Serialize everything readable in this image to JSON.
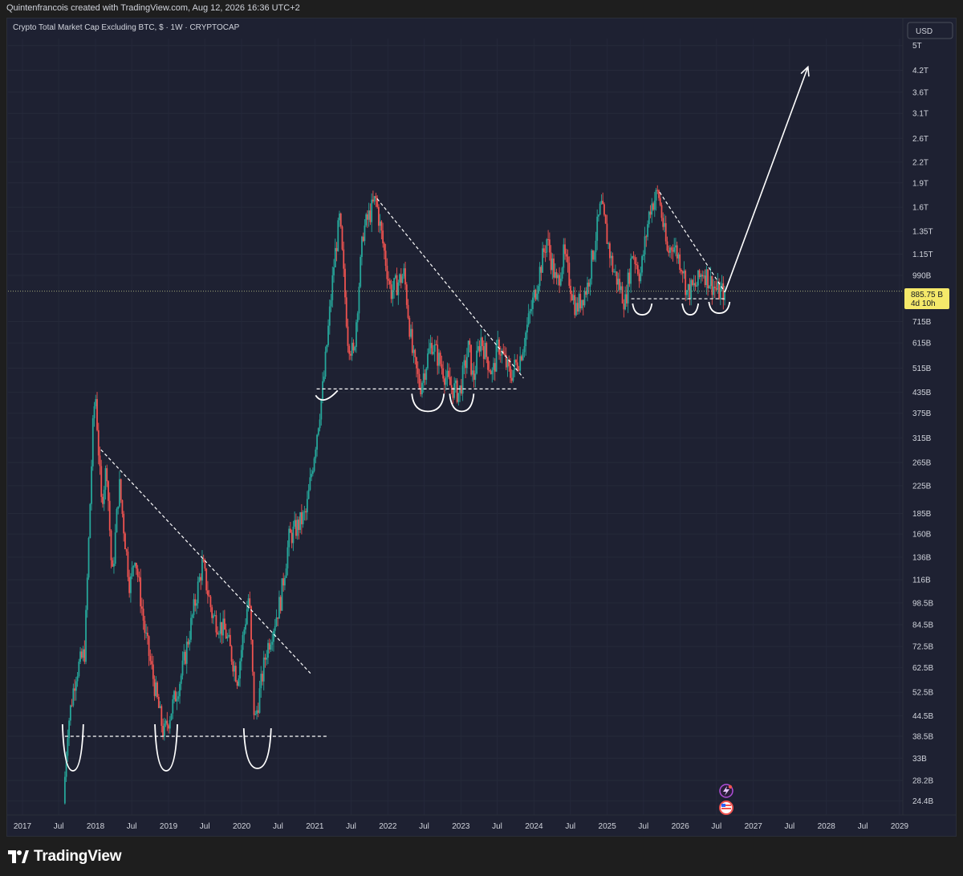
{
  "header": {
    "credit": "Quintenfrancois created with TradingView.com, Aug 12, 2026 16:36 UTC+2"
  },
  "chart_title": "Crypto Total Market Cap Excluding BTC, $ · 1W · CRYPTOCAP",
  "currency_button": "USD",
  "price_tag": {
    "value": "885.75 B",
    "countdown": "4d 10h"
  },
  "footer": {
    "brand": "TradingView"
  },
  "colors": {
    "background": "#1e2132",
    "up": "#26a69a",
    "down": "#ef5350",
    "annotation": "#ffffff",
    "price_line": "#a0a67a",
    "price_tag_bg": "#f5e96a"
  },
  "icons": [
    "tradingview-logo-icon",
    "lightning-icon",
    "us-flag-icon"
  ],
  "chart_data": {
    "type": "candlestick",
    "title": "Crypto Total Market Cap Excluding BTC, $ · 1W · CRYPTOCAP",
    "y_scale": "log",
    "y_ticks": [
      "5T",
      "4.2T",
      "3.6T",
      "3.1T",
      "2.6T",
      "2.2T",
      "1.9T",
      "1.6T",
      "1.35T",
      "1.15T",
      "990B",
      "715B",
      "615B",
      "515B",
      "435B",
      "375B",
      "315B",
      "265B",
      "225B",
      "185B",
      "160B",
      "136B",
      "116B",
      "98.5B",
      "84.5B",
      "72.5B",
      "62.5B",
      "52.5B",
      "44.5B",
      "38.5B",
      "33B",
      "28.2B",
      "24.4B"
    ],
    "x_ticks": [
      "2017",
      "Jul",
      "2018",
      "Jul",
      "2019",
      "Jul",
      "2020",
      "Jul",
      "2021",
      "Jul",
      "2022",
      "Jul",
      "2023",
      "Jul",
      "2024",
      "Jul",
      "2025",
      "Jul",
      "2026",
      "Jul",
      "2027",
      "Jul",
      "2028",
      "Jul",
      "2029"
    ],
    "last_price": "885.75 B",
    "price_path": [
      [
        "2017-08-01",
        24
      ],
      [
        "2017-08-20",
        40
      ],
      [
        "2017-10-01",
        60
      ],
      [
        "2017-11-15",
        70
      ],
      [
        "2017-12-25",
        330
      ],
      [
        "2018-01-07",
        440
      ],
      [
        "2018-02-06",
        200
      ],
      [
        "2018-03-05",
        260
      ],
      [
        "2018-04-01",
        115
      ],
      [
        "2018-05-06",
        230
      ],
      [
        "2018-06-29",
        110
      ],
      [
        "2018-07-24",
        140
      ],
      [
        "2018-09-12",
        80
      ],
      [
        "2018-11-25",
        45
      ],
      [
        "2018-12-15",
        39
      ],
      [
        "2019-01-20",
        46
      ],
      [
        "2019-03-15",
        60
      ],
      [
        "2019-06-26",
        130
      ],
      [
        "2019-08-15",
        90
      ],
      [
        "2019-10-20",
        80
      ],
      [
        "2019-12-18",
        58
      ],
      [
        "2020-02-14",
        105
      ],
      [
        "2020-03-13",
        42
      ],
      [
        "2020-05-10",
        70
      ],
      [
        "2020-07-20",
        100
      ],
      [
        "2020-09-01",
        155
      ],
      [
        "2020-11-25",
        185
      ],
      [
        "2021-01-10",
        300
      ],
      [
        "2021-02-21",
        470
      ],
      [
        "2021-04-15",
        1100
      ],
      [
        "2021-05-12",
        1480
      ],
      [
        "2021-06-22",
        640
      ],
      [
        "2021-07-20",
        560
      ],
      [
        "2021-09-06",
        1350
      ],
      [
        "2021-11-08",
        1700
      ],
      [
        "2022-01-22",
        880
      ],
      [
        "2022-03-30",
        1000
      ],
      [
        "2022-05-12",
        560
      ],
      [
        "2022-06-18",
        450
      ],
      [
        "2022-08-14",
        620
      ],
      [
        "2022-11-09",
        460
      ],
      [
        "2022-12-30",
        430
      ],
      [
        "2023-02-16",
        600
      ],
      [
        "2023-03-10",
        470
      ],
      [
        "2023-04-16",
        640
      ],
      [
        "2023-06-15",
        490
      ],
      [
        "2023-07-14",
        610
      ],
      [
        "2023-09-11",
        490
      ],
      [
        "2023-11-01",
        560
      ],
      [
        "2023-12-25",
        780
      ],
      [
        "2024-03-12",
        1280
      ],
      [
        "2024-05-01",
        920
      ],
      [
        "2024-06-05",
        1150
      ],
      [
        "2024-08-05",
        780
      ],
      [
        "2024-10-01",
        920
      ],
      [
        "2024-12-08",
        1630
      ],
      [
        "2025-02-03",
        1050
      ],
      [
        "2025-04-08",
        820
      ],
      [
        "2025-05-14",
        1180
      ],
      [
        "2025-06-22",
        990
      ],
      [
        "2025-08-10",
        1600
      ],
      [
        "2025-09-20",
        1780
      ],
      [
        "2025-11-05",
        1150
      ],
      [
        "2025-12-01",
        1250
      ],
      [
        "2026-01-20",
        1050
      ],
      [
        "2026-02-10",
        880
      ],
      [
        "2026-03-28",
        920
      ],
      [
        "2026-05-01",
        1030
      ],
      [
        "2026-06-05",
        950
      ],
      [
        "2026-07-15",
        880
      ],
      [
        "2026-08-12",
        885.75
      ]
    ],
    "annotations": {
      "support_2018_2020": 38.5,
      "support_2022_2023": 445,
      "support_2025_2026": 840,
      "downtrend_2018": [
        [
          "2018-01-28",
          290
        ],
        [
          "2020-12-10",
          60
        ]
      ],
      "downtrend_2022": [
        [
          "2021-11-08",
          1700
        ],
        [
          "2023-11-10",
          480
        ]
      ],
      "downtrend_2025": [
        [
          "2025-09-20",
          1780
        ],
        [
          "2026-08-12",
          880
        ]
      ],
      "target_arrow": [
        [
          "2026-08-12",
          880
        ],
        [
          "2027-10-01",
          4300
        ]
      ]
    }
  }
}
